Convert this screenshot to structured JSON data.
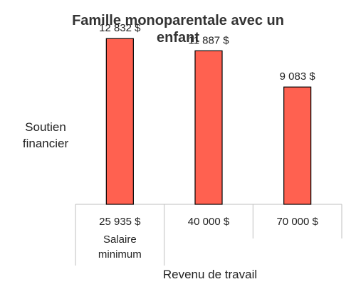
{
  "chart_data": {
    "type": "bar",
    "title_lines": [
      "Famille monoparentale avec un",
      "enfant"
    ],
    "ylabel_lines": [
      "Soutien",
      "financier"
    ],
    "xlabel": "Revenu de travail",
    "categories": [
      "25 935  $",
      "40 000  $",
      "70 000  $"
    ],
    "category_sublabels": [
      [
        "Salaire",
        "minimum"
      ],
      [],
      []
    ],
    "values": [
      12832,
      11887,
      9083
    ],
    "value_labels": [
      "12 832  $",
      "11 887  $",
      "9 083  $"
    ],
    "ylim": [
      0,
      14000
    ],
    "grid": false,
    "legend": "none",
    "bar_color": "#ff6150",
    "bar_stroke": "#000000",
    "axis_color": "#bfbfbf"
  }
}
